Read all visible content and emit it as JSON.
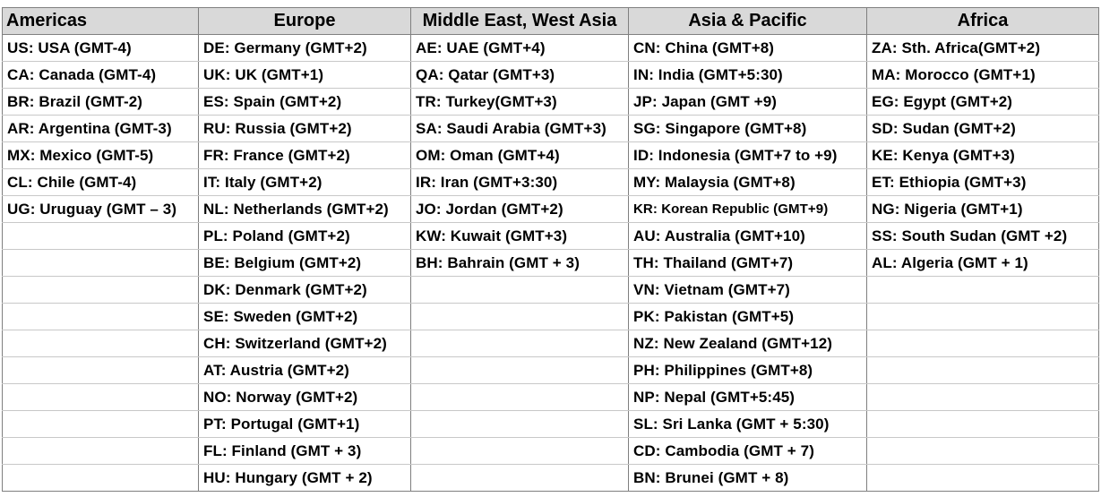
{
  "regions": [
    {
      "name": "Americas",
      "countries": [
        "US: USA (GMT-4)",
        "CA: Canada  (GMT-4)",
        "BR: Brazil (GMT-2)",
        "AR: Argentina (GMT-3)",
        "MX: Mexico (GMT-5)",
        "CL: Chile (GMT-4)",
        "UG: Uruguay  (GMT – 3)"
      ]
    },
    {
      "name": "Europe",
      "countries": [
        "DE: Germany  (GMT+2)",
        "UK: UK (GMT+1)",
        "ES: Spain (GMT+2)",
        "RU: Russia  (GMT+2)",
        "FR: France (GMT+2)",
        "IT: Italy (GMT+2)",
        "NL: Netherlands  (GMT+2)",
        "PL: Poland  (GMT+2)",
        "BE: Belgium (GMT+2)",
        "DK: Denmark  (GMT+2)",
        "SE: Sweden (GMT+2)",
        "CH: Switzerland  (GMT+2)",
        "AT: Austria (GMT+2)",
        "NO: Norway (GMT+2)",
        "PT: Portugal  (GMT+1)",
        "FL: Finland  (GMT + 3)",
        "HU: Hungary  (GMT + 2)"
      ]
    },
    {
      "name": "Middle East, West Asia",
      "countries": [
        "AE: UAE (GMT+4)",
        "QA: Qatar (GMT+3)",
        "TR: Turkey(GMT+3)",
        "SA: Saudi Arabia  (GMT+3)",
        "OM: Oman  (GMT+4)",
        "IR: Iran  (GMT+3:30)",
        "JO: Jordan  (GMT+2)",
        "KW: Kuwait  (GMT+3)",
        "BH: Bahrain  (GMT + 3)"
      ]
    },
    {
      "name": "Asia & Pacific",
      "countries": [
        "CN: China  (GMT+8)",
        "IN: India (GMT+5:30)",
        "JP: Japan  (GMT +9)",
        "SG: Singapore  (GMT+8)",
        "ID: Indonesia  (GMT+7  to +9)",
        "MY: Malaysia  (GMT+8)",
        "KR: Korean Republic (GMT+9)",
        "AU: Australia  (GMT+10)",
        "TH: Thailand  (GMT+7)",
        "VN: Vietnam  (GMT+7)",
        "PK: Pakistan  (GMT+5)",
        "NZ: New Zealand  (GMT+12)",
        "PH: Philippines  (GMT+8)",
        "NP: Nepal  (GMT+5:45)",
        "SL: Sri Lanka (GMT + 5:30)",
        "CD: Cambodia  (GMT + 7)",
        "BN: Brunei (GMT + 8)"
      ]
    },
    {
      "name": "Africa",
      "countries": [
        "ZA: Sth. Africa(GMT+2)",
        "MA: Morocco  (GMT+1)",
        "EG: Egypt  (GMT+2)",
        "SD: Sudan  (GMT+2)",
        "KE: Kenya (GMT+3)",
        "ET: Ethiopia  (GMT+3)",
        "NG: Nigeria  (GMT+1)",
        "SS: South Sudan  (GMT +2)",
        "AL: Algeria  (GMT + 1)"
      ]
    }
  ]
}
